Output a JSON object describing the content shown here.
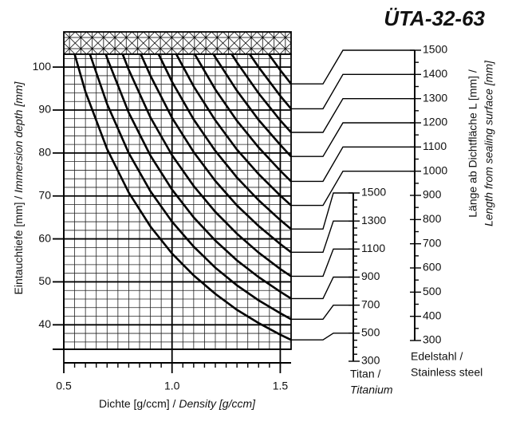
{
  "chart_data": {
    "type": "line",
    "title": "ÜTA-32-63",
    "x_label": {
      "main": "Dichte [g/ccm] / ",
      "italic": "Density [g/ccm]"
    },
    "y_label": {
      "main": "Eintauchtiefe [mm] / ",
      "italic": "Immersion depth [mm]"
    },
    "right_label": {
      "main": "Länge ab Dichtfläche L [mm] /",
      "italic": "Length from sealing surface [mm]"
    },
    "xlim": [
      0.5,
      1.55
    ],
    "ylim": [
      34.3,
      103
    ],
    "xticks": [
      0.5,
      {
        "value": 1.0,
        "label": "1.0"
      },
      1.5
    ],
    "yticks": [
      40,
      50,
      60,
      70,
      80,
      90,
      100
    ],
    "xgrid": [
      0.55,
      0.6,
      0.65,
      0.7,
      0.75,
      0.8,
      0.85,
      0.9,
      0.95,
      1.05,
      1.1,
      1.15,
      1.2,
      1.25,
      1.3,
      1.35,
      1.4,
      1.45,
      1.5
    ],
    "ygrid": [
      36,
      38,
      42,
      44,
      46,
      48,
      52,
      54,
      56,
      58,
      62,
      64,
      66,
      68,
      72,
      74,
      76,
      78,
      82,
      84,
      86,
      88,
      92,
      94,
      96,
      98,
      102
    ],
    "grid": true,
    "steel_scale": {
      "label": "Edelstahl /",
      "label_italic": "Stainless steel",
      "lim": [
        300,
        1500
      ],
      "ticks": [
        300,
        400,
        500,
        600,
        700,
        800,
        900,
        1000,
        1100,
        1200,
        1300,
        1400,
        1500
      ],
      "minor_ticks": [
        350,
        450,
        550,
        650,
        750,
        850,
        950,
        1050,
        1150,
        1250,
        1350,
        1450
      ]
    },
    "titan_scale": {
      "label": "Titan /",
      "label_italic": "Titanium",
      "lim": [
        300,
        1500
      ],
      "ticks": [
        300,
        500,
        700,
        900,
        1100,
        1300,
        1500
      ],
      "minor_ticks": [
        350,
        400,
        450,
        550,
        600,
        650,
        750,
        800,
        850,
        950,
        1000,
        1050,
        1150,
        1200,
        1250,
        1350,
        1400,
        1450
      ]
    },
    "series": [
      {
        "color": "#000000",
        "scale": "steel",
        "target": 1500,
        "x": [
          1.447,
          1.5,
          1.55
        ],
        "values": [
          103,
          99.3,
          96.1
        ]
      },
      {
        "color": "#000000",
        "scale": "steel",
        "target": 1400,
        "x": [
          1.359,
          1.4,
          1.5,
          1.55
        ],
        "values": [
          103,
          100,
          93.3,
          90.3
        ]
      },
      {
        "color": "#000000",
        "scale": "steel",
        "target": 1300,
        "x": [
          1.276,
          1.3,
          1.4,
          1.5,
          1.55
        ],
        "values": [
          103,
          101.1,
          93.9,
          87.6,
          84.8
        ]
      },
      {
        "color": "#000000",
        "scale": "steel",
        "target": 1200,
        "x": [
          1.192,
          1.2,
          1.3,
          1.4,
          1.5,
          1.55
        ],
        "values": [
          103,
          102.3,
          94.5,
          87.7,
          81.9,
          79.2
        ]
      },
      {
        "color": "#000000",
        "scale": "steel",
        "target": 1100,
        "x": [
          1.105,
          1.2,
          1.3,
          1.4,
          1.5,
          1.55
        ],
        "values": [
          103,
          94.8,
          87.5,
          81.3,
          75.9,
          73.4
        ]
      },
      {
        "color": "#000000",
        "scale": "steel",
        "target": 1000,
        "x": [
          1.02,
          1.1,
          1.2,
          1.3,
          1.4,
          1.5,
          1.55
        ],
        "values": [
          103,
          95.5,
          87.6,
          80.8,
          75.1,
          70.1,
          67.8
        ]
      },
      {
        "color": "#000000",
        "scale": "titan",
        "target": 1500,
        "x": [
          0.938,
          1.0,
          1.1,
          1.2,
          1.3,
          1.4,
          1.5,
          1.55
        ],
        "values": [
          103,
          96.6,
          87.8,
          80.5,
          74.3,
          69,
          64.4,
          62.3
        ]
      },
      {
        "color": "#000000",
        "scale": "titan",
        "target": 1300,
        "x": [
          0.856,
          0.9,
          1.0,
          1.1,
          1.2,
          1.3,
          1.4,
          1.5,
          1.55
        ],
        "values": [
          103,
          98,
          88.2,
          80.2,
          73.5,
          67.8,
          63,
          58.8,
          56.9
        ]
      },
      {
        "color": "#000000",
        "scale": "titan",
        "target": 1100,
        "x": [
          0.772,
          0.8,
          0.9,
          1.0,
          1.1,
          1.2,
          1.3,
          1.4,
          1.5,
          1.55
        ],
        "values": [
          103,
          99.4,
          88.3,
          79.5,
          72.3,
          66.3,
          61.2,
          56.8,
          53,
          51.3
        ]
      },
      {
        "color": "#000000",
        "scale": "titan",
        "target": 900,
        "x": [
          0.694,
          0.7,
          0.8,
          0.9,
          1.0,
          1.1,
          1.2,
          1.3,
          1.4,
          1.5,
          1.55
        ],
        "values": [
          103,
          102.1,
          89.4,
          79.4,
          71.5,
          65,
          59.6,
          55,
          51.1,
          47.7,
          46.1
        ]
      },
      {
        "color": "#000000",
        "scale": "titan",
        "target": 700,
        "x": [
          0.621,
          0.7,
          0.8,
          0.9,
          1.0,
          1.1,
          1.2,
          1.3,
          1.4,
          1.5,
          1.55
        ],
        "values": [
          103,
          91.4,
          80,
          71.1,
          64,
          58.2,
          53.3,
          49.2,
          45.7,
          42.7,
          41.3
        ]
      },
      {
        "color": "#000000",
        "scale": "titan",
        "target": 500,
        "x": [
          0.55,
          0.6,
          0.7,
          0.8,
          0.9,
          1.0,
          1.1,
          1.2,
          1.3,
          1.4,
          1.5,
          1.55
        ],
        "values": [
          103,
          94.3,
          80.9,
          70.8,
          62.9,
          56.6,
          51.5,
          47.2,
          43.5,
          40.4,
          37.7,
          36.5
        ]
      }
    ]
  }
}
